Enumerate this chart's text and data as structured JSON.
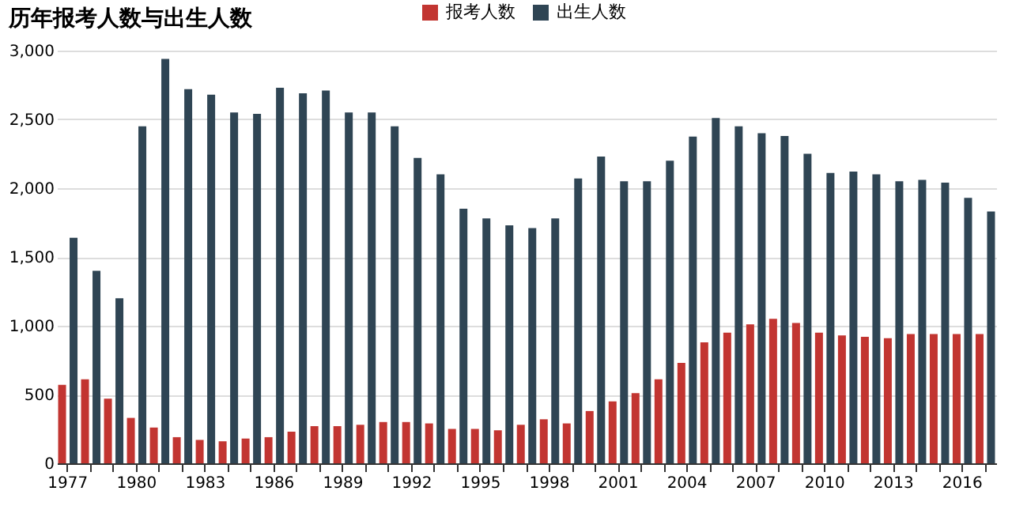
{
  "chart_data": {
    "type": "bar",
    "title": "历年报考人数与出生人数",
    "categories": [
      "1977",
      null,
      null,
      "1980",
      null,
      null,
      "1983",
      null,
      null,
      "1986",
      null,
      null,
      "1989",
      null,
      null,
      "1992",
      null,
      null,
      "1995",
      null,
      null,
      "1998",
      null,
      null,
      "2001",
      null,
      null,
      "2004",
      null,
      null,
      "2007",
      null,
      null,
      "2010",
      null,
      null,
      "2013",
      null,
      null,
      "2016",
      null
    ],
    "series": [
      {
        "name": "报考人数",
        "color": "#c23531",
        "values": [
          570,
          610,
          470,
          330,
          260,
          190,
          170,
          160,
          180,
          190,
          230,
          270,
          270,
          280,
          300,
          300,
          290,
          250,
          250,
          240,
          280,
          320,
          290,
          380,
          450,
          510,
          610,
          730,
          880,
          950,
          1010,
          1050,
          1020,
          950,
          930,
          920,
          910,
          940,
          940,
          940,
          940
        ]
      },
      {
        "name": "出生人数",
        "color": "#2f4554",
        "values": [
          1640,
          1400,
          1200,
          2450,
          2940,
          2720,
          2680,
          2550,
          2540,
          2730,
          2690,
          2710,
          2550,
          2550,
          2450,
          2220,
          2100,
          1850,
          1780,
          1730,
          1710,
          1780,
          2070,
          2230,
          2050,
          2050,
          2200,
          2375,
          2510,
          2450,
          2400,
          2380,
          2250,
          2110,
          2120,
          2100,
          2050,
          2060,
          2040,
          1930,
          1830
        ]
      }
    ],
    "ylim": [
      0,
      3000
    ],
    "yticks": [
      0,
      500,
      {
        "value": 1000,
        "label": "1,000"
      },
      {
        "value": 1500,
        "label": "1,500"
      },
      {
        "value": 2000,
        "label": "2,000"
      },
      {
        "value": 2500,
        "label": "2,500"
      },
      {
        "value": 3000,
        "label": "3,000"
      }
    ],
    "grid": "y",
    "legend": "top"
  }
}
